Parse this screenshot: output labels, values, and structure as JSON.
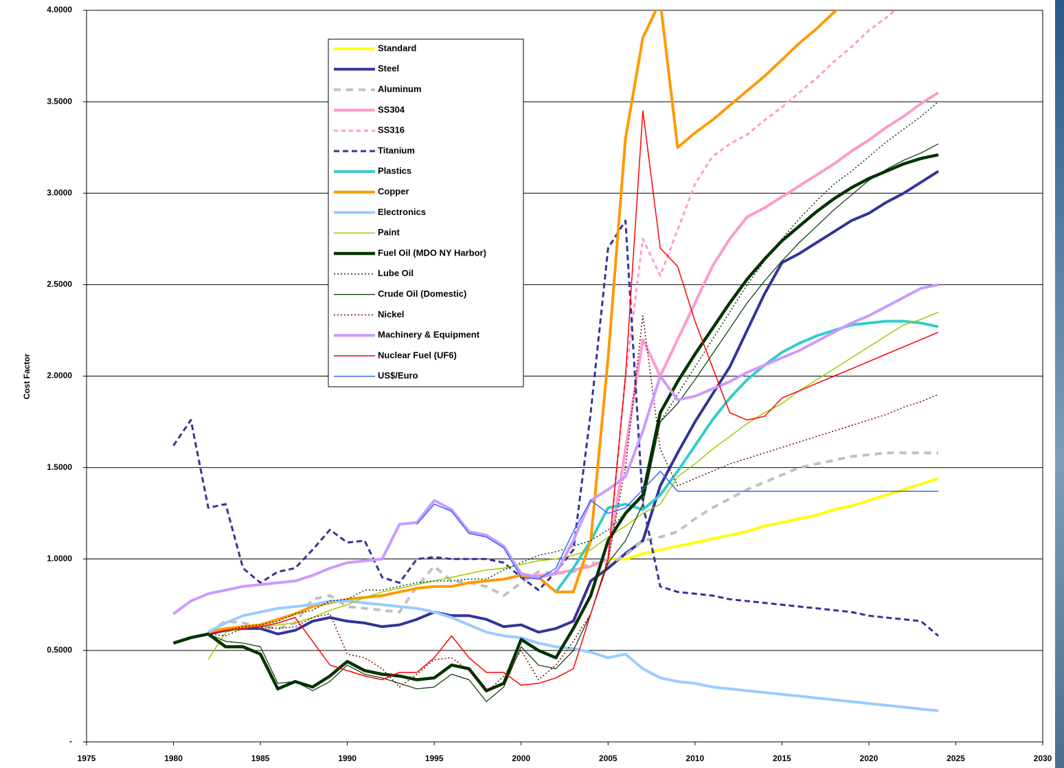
{
  "chart_data": {
    "type": "line",
    "y_label": "Cost Factor",
    "xlim": [
      1975,
      2030
    ],
    "xticks": [
      1975,
      1980,
      1985,
      1990,
      1995,
      2000,
      2005,
      2010,
      2015,
      2020,
      2025,
      2030
    ],
    "ylim": [
      0,
      4
    ],
    "yticks": [
      {
        "value": 0,
        "label": "-"
      },
      {
        "value": 0.5,
        "label": "0.5000"
      },
      {
        "value": 1,
        "label": "1.0000"
      },
      {
        "value": 1.5,
        "label": "1.5000"
      },
      {
        "value": 2,
        "label": "2.0000"
      },
      {
        "value": 2.5,
        "label": "2.5000"
      },
      {
        "value": 3,
        "label": "3.0000"
      },
      {
        "value": 3.5,
        "label": "3.5000"
      },
      {
        "value": 4,
        "label": "4.0000"
      }
    ],
    "grid": true,
    "x": [
      1980,
      1981,
      1982,
      1983,
      1984,
      1985,
      1986,
      1987,
      1988,
      1989,
      1990,
      1991,
      1992,
      1993,
      1994,
      1995,
      1996,
      1997,
      1998,
      1999,
      2000,
      2001,
      2002,
      2003,
      2004,
      2005,
      2006,
      2007,
      2008,
      2009,
      2010,
      2011,
      2012,
      2013,
      2014,
      2015,
      2016,
      2017,
      2018,
      2019,
      2020,
      2021,
      2022,
      2023,
      2024
    ],
    "series": [
      {
        "name": "Standard",
        "color": "#ffff00",
        "width": 4,
        "dash": "none",
        "values": [
          null,
          null,
          null,
          null,
          null,
          null,
          null,
          null,
          null,
          null,
          null,
          null,
          null,
          null,
          null,
          null,
          null,
          null,
          null,
          null,
          null,
          null,
          null,
          null,
          null,
          1.0,
          1.0,
          1.03,
          1.05,
          1.07,
          1.09,
          1.11,
          1.13,
          1.15,
          1.18,
          1.2,
          1.22,
          1.24,
          1.27,
          1.29,
          1.32,
          1.35,
          1.38,
          1.41,
          1.44
        ]
      },
      {
        "name": "Steel",
        "color": "#333399",
        "width": 4,
        "dash": "none",
        "values": [
          0.54,
          0.57,
          0.59,
          0.61,
          0.62,
          0.62,
          0.59,
          0.61,
          0.66,
          0.68,
          0.66,
          0.65,
          0.63,
          0.64,
          0.67,
          0.71,
          0.69,
          0.69,
          0.67,
          0.63,
          0.64,
          0.6,
          0.62,
          0.66,
          0.88,
          0.95,
          1.03,
          1.1,
          1.4,
          1.58,
          1.75,
          1.9,
          2.05,
          2.25,
          2.45,
          2.62,
          2.67,
          2.73,
          2.79,
          2.85,
          2.89,
          2.95,
          3.0,
          3.06,
          3.12
        ]
      },
      {
        "name": "Aluminum",
        "color": "#c0c0c0",
        "width": 4,
        "dash": "10 8",
        "values": [
          null,
          null,
          0.6,
          0.66,
          0.65,
          0.63,
          0.62,
          0.65,
          0.78,
          0.8,
          0.74,
          0.73,
          0.72,
          0.71,
          0.85,
          0.96,
          0.88,
          0.87,
          0.85,
          0.8,
          0.87,
          0.93,
          0.92,
          0.93,
          0.98,
          0.97,
          1.02,
          1.1,
          1.12,
          1.15,
          1.22,
          1.28,
          1.33,
          1.38,
          1.42,
          1.46,
          1.5,
          1.52,
          1.54,
          1.56,
          1.57,
          1.58,
          1.58,
          1.58,
          1.58
        ]
      },
      {
        "name": "SS304",
        "color": "#ff99cc",
        "width": 4,
        "dash": "none",
        "values": [
          null,
          null,
          null,
          null,
          null,
          null,
          null,
          null,
          null,
          null,
          null,
          null,
          null,
          null,
          null,
          null,
          null,
          null,
          null,
          null,
          0.9,
          0.91,
          0.92,
          0.94,
          0.96,
          1.0,
          1.6,
          2.2,
          2.0,
          2.2,
          2.4,
          2.6,
          2.75,
          2.87,
          2.92,
          2.98,
          3.04,
          3.1,
          3.16,
          3.23,
          3.29,
          3.36,
          3.42,
          3.49,
          3.55
        ]
      },
      {
        "name": "SS316",
        "color": "#ff99cc",
        "width": 3,
        "dash": "6 5",
        "values": [
          null,
          null,
          null,
          null,
          null,
          null,
          null,
          null,
          null,
          null,
          null,
          null,
          null,
          null,
          null,
          null,
          null,
          null,
          null,
          null,
          null,
          null,
          null,
          null,
          0.96,
          1.0,
          2.0,
          2.75,
          2.55,
          2.8,
          3.05,
          3.2,
          3.27,
          3.32,
          3.4,
          3.47,
          3.55,
          3.63,
          3.72,
          3.8,
          3.89,
          3.96,
          4.04,
          null,
          null
        ]
      },
      {
        "name": "Titanium",
        "color": "#333399",
        "width": 3,
        "dash": "8 5",
        "values": [
          1.62,
          1.76,
          1.28,
          1.3,
          0.95,
          0.87,
          0.93,
          0.95,
          1.05,
          1.16,
          1.09,
          1.1,
          0.9,
          0.87,
          1.0,
          1.01,
          1.0,
          1.0,
          1.0,
          0.98,
          0.9,
          0.83,
          0.93,
          1.05,
          1.8,
          2.7,
          2.85,
          1.3,
          0.85,
          0.82,
          0.81,
          0.8,
          0.78,
          0.77,
          0.76,
          0.75,
          0.74,
          0.73,
          0.72,
          0.71,
          0.69,
          0.68,
          0.67,
          0.66,
          0.58
        ]
      },
      {
        "name": "Plastics",
        "color": "#33cccc",
        "width": 4,
        "dash": "none",
        "values": [
          null,
          null,
          null,
          null,
          null,
          null,
          null,
          null,
          null,
          null,
          null,
          null,
          null,
          null,
          null,
          null,
          null,
          null,
          null,
          null,
          null,
          null,
          0.82,
          0.95,
          1.1,
          1.28,
          1.3,
          1.27,
          1.35,
          1.48,
          1.62,
          1.76,
          1.88,
          1.98,
          2.06,
          2.13,
          2.18,
          2.22,
          2.25,
          2.28,
          2.29,
          2.3,
          2.3,
          2.29,
          2.27
        ]
      },
      {
        "name": "Copper",
        "color": "#ff9900",
        "width": 4,
        "dash": "none",
        "values": [
          null,
          null,
          0.6,
          0.62,
          0.63,
          0.64,
          0.67,
          0.7,
          0.74,
          0.76,
          0.78,
          0.79,
          0.8,
          0.82,
          0.84,
          0.85,
          0.85,
          0.87,
          0.88,
          0.89,
          0.91,
          0.9,
          0.82,
          0.82,
          1.1,
          2.1,
          3.3,
          3.85,
          4.05,
          3.25,
          3.33,
          3.4,
          3.48,
          3.56,
          3.64,
          3.73,
          3.82,
          3.9,
          3.99,
          4.07,
          null,
          null,
          null,
          null,
          null
        ]
      },
      {
        "name": "Electronics",
        "color": "#99ccff",
        "width": 4,
        "dash": "none",
        "values": [
          null,
          null,
          0.6,
          0.65,
          0.69,
          0.71,
          0.73,
          0.74,
          0.75,
          0.77,
          0.77,
          0.76,
          0.75,
          0.74,
          0.73,
          0.71,
          0.68,
          0.64,
          0.6,
          0.58,
          0.57,
          0.54,
          0.52,
          0.51,
          0.49,
          0.46,
          0.48,
          0.4,
          0.35,
          0.33,
          0.32,
          0.3,
          0.29,
          0.28,
          0.27,
          0.26,
          0.25,
          0.24,
          0.23,
          0.22,
          0.21,
          0.2,
          0.19,
          0.18,
          0.17
        ]
      },
      {
        "name": "Paint",
        "color": "#99cc00",
        "width": 1.5,
        "dash": "none",
        "values": [
          null,
          null,
          0.45,
          0.6,
          0.62,
          0.63,
          0.64,
          0.65,
          0.68,
          0.72,
          0.75,
          0.79,
          0.82,
          0.84,
          0.86,
          0.88,
          0.9,
          0.92,
          0.94,
          0.95,
          0.97,
          0.99,
          1.0,
          1.02,
          1.05,
          1.12,
          1.18,
          1.25,
          1.3,
          1.45,
          1.52,
          1.6,
          1.67,
          1.74,
          1.8,
          1.85,
          1.92,
          1.98,
          2.04,
          2.1,
          2.16,
          2.22,
          2.28,
          2.31,
          2.35
        ]
      },
      {
        "name": "Fuel Oil (MDO NY Harbor)",
        "color": "#003300",
        "width": 4.5,
        "dash": "none",
        "values": [
          0.54,
          0.57,
          0.59,
          0.52,
          0.52,
          0.48,
          0.29,
          0.33,
          0.3,
          0.36,
          0.44,
          0.39,
          0.37,
          0.36,
          0.34,
          0.35,
          0.42,
          0.4,
          0.28,
          0.32,
          0.56,
          0.5,
          0.46,
          0.62,
          0.8,
          1.1,
          1.25,
          1.35,
          1.8,
          1.97,
          2.12,
          2.26,
          2.4,
          2.53,
          2.64,
          2.74,
          2.82,
          2.9,
          2.97,
          3.03,
          3.08,
          3.12,
          3.16,
          3.19,
          3.21
        ]
      },
      {
        "name": "Lube Oil",
        "color": "#003300",
        "width": 1.5,
        "dash": "2 3",
        "values": [
          null,
          null,
          0.59,
          0.61,
          0.63,
          0.64,
          0.66,
          0.7,
          0.72,
          0.77,
          0.78,
          0.83,
          0.83,
          0.85,
          0.87,
          0.88,
          0.88,
          0.89,
          0.89,
          0.94,
          0.98,
          1.02,
          1.04,
          1.07,
          1.1,
          1.16,
          1.25,
          1.35,
          1.75,
          1.9,
          2.05,
          2.2,
          2.35,
          2.5,
          2.63,
          2.75,
          2.86,
          2.96,
          3.05,
          3.12,
          3.2,
          3.28,
          3.35,
          3.42,
          3.5
        ]
      },
      {
        "name": "Crude Oil (Domestic)",
        "color": "#003300",
        "width": 1.2,
        "dash": "none",
        "values": [
          0.54,
          0.57,
          0.59,
          0.55,
          0.54,
          0.52,
          0.32,
          0.33,
          0.28,
          0.33,
          0.42,
          0.37,
          0.35,
          0.32,
          0.29,
          0.3,
          0.37,
          0.34,
          0.22,
          0.3,
          0.52,
          0.42,
          0.4,
          0.5,
          0.7,
          0.98,
          1.1,
          1.3,
          1.75,
          1.85,
          1.98,
          2.12,
          2.26,
          2.4,
          2.52,
          2.63,
          2.73,
          2.82,
          2.91,
          2.99,
          3.07,
          3.13,
          3.18,
          3.22,
          3.27
        ]
      },
      {
        "name": "Nickel",
        "color": "#660000",
        "width": 1.5,
        "dash": "2 3",
        "values": [
          null,
          null,
          0.59,
          0.58,
          0.62,
          0.63,
          0.62,
          0.63,
          0.68,
          0.7,
          0.48,
          0.46,
          0.4,
          0.3,
          0.37,
          0.45,
          0.46,
          0.39,
          0.27,
          0.36,
          0.5,
          0.34,
          0.42,
          0.55,
          0.7,
          1.0,
          1.5,
          2.33,
          1.6,
          1.4,
          1.44,
          1.48,
          1.52,
          1.55,
          1.58,
          1.61,
          1.64,
          1.67,
          1.7,
          1.73,
          1.76,
          1.79,
          1.83,
          1.86,
          1.9
        ]
      },
      {
        "name": "Machinery & Equipment",
        "color": "#cc99ff",
        "width": 4,
        "dash": "none",
        "values": [
          0.7,
          0.77,
          0.81,
          0.83,
          0.85,
          0.86,
          0.87,
          0.88,
          0.91,
          0.95,
          0.98,
          0.99,
          1.0,
          1.19,
          1.2,
          1.32,
          1.27,
          1.15,
          1.13,
          1.07,
          0.92,
          0.9,
          0.92,
          1.1,
          1.32,
          1.38,
          1.45,
          1.7,
          2.0,
          1.87,
          1.89,
          1.93,
          1.97,
          2.02,
          2.06,
          2.1,
          2.14,
          2.19,
          2.24,
          2.29,
          2.33,
          2.38,
          2.43,
          2.48,
          2.5
        ]
      },
      {
        "name": "Nuclear Fuel (UF6)",
        "color": "#ff0000",
        "width": 1.5,
        "dash": "none",
        "values": [
          null,
          null,
          0.59,
          0.61,
          0.62,
          0.63,
          0.65,
          0.68,
          0.55,
          0.42,
          0.39,
          0.36,
          0.34,
          0.38,
          0.38,
          0.46,
          0.58,
          0.46,
          0.38,
          0.38,
          0.31,
          0.32,
          0.35,
          0.4,
          0.7,
          1.0,
          2.0,
          3.45,
          2.7,
          2.6,
          2.3,
          2.05,
          1.8,
          1.76,
          1.78,
          1.88,
          1.92,
          1.96,
          2.0,
          2.04,
          2.08,
          2.12,
          2.16,
          2.2,
          2.24
        ]
      },
      {
        "name": "US$/Euro",
        "color": "#3366ff",
        "width": 1.5,
        "dash": "none",
        "values": [
          null,
          null,
          null,
          null,
          null,
          null,
          null,
          null,
          null,
          null,
          null,
          null,
          null,
          null,
          1.19,
          1.3,
          1.26,
          1.14,
          1.12,
          1.06,
          0.9,
          0.89,
          0.95,
          1.15,
          1.32,
          1.25,
          1.28,
          1.38,
          1.48,
          1.37,
          1.37,
          1.37,
          1.37,
          1.37,
          1.37,
          1.37,
          1.37,
          1.37,
          1.37,
          1.37,
          1.37,
          1.37,
          1.37,
          1.37,
          1.37
        ]
      }
    ]
  }
}
